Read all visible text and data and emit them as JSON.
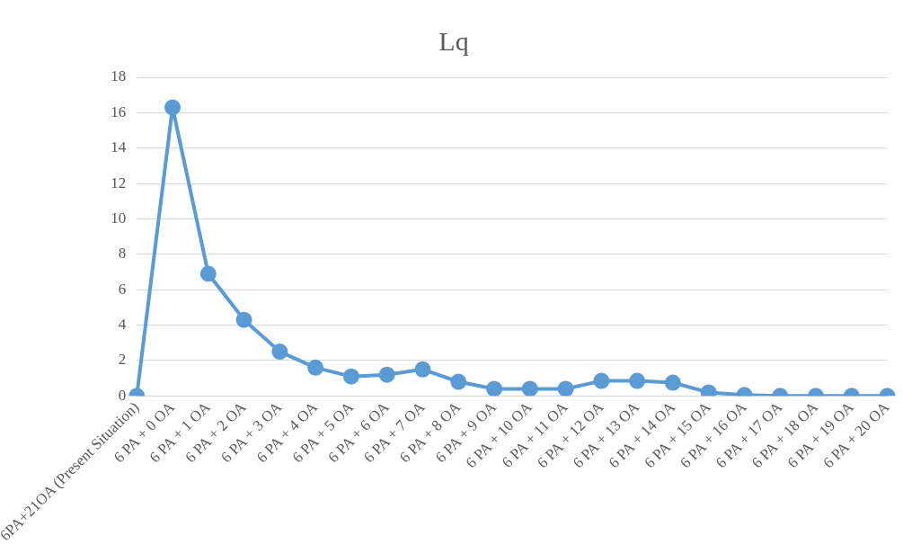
{
  "chart_data": {
    "type": "line",
    "title": "Lq",
    "categories": [
      "6PA+21OA (Present Situation)",
      "6 PA + 0 OA",
      "6 PA + 1 OA",
      "6 PA + 2 OA",
      "6 PA + 3 OA",
      "6 PA + 4 OA",
      "6 PA + 5 OA",
      "6 PA + 6 OA",
      "6 PA + 7 OA",
      "6 PA + 8 OA",
      "6 PA + 9 OA",
      "6 PA + 10 OA",
      "6 PA + 11 OA",
      "6 PA + 12 OA",
      "6 PA + 13 OA",
      "6 PA + 14 OA",
      "6 PA + 15 OA",
      "6 PA + 16 OA",
      "6 PA + 17 OA",
      "6 PA + 18 OA",
      "6 PA + 19 OA",
      "6 PA + 20 OA"
    ],
    "series": [
      {
        "color": "#5b9bd5",
        "values": [
          0,
          16.3,
          6.9,
          4.3,
          2.5,
          1.6,
          1.1,
          1.2,
          1.5,
          0.8,
          0.4,
          0.4,
          0.4,
          0.85,
          0.85,
          0.75,
          0.2,
          0.05,
          0,
          0,
          0,
          0
        ]
      }
    ],
    "ylim": [
      0,
      18
    ],
    "yticks": [
      0,
      2,
      4,
      6,
      8,
      10,
      12,
      14,
      16,
      18
    ],
    "grid": "y",
    "legend": false,
    "marker": "circle",
    "line_style": "solid"
  }
}
